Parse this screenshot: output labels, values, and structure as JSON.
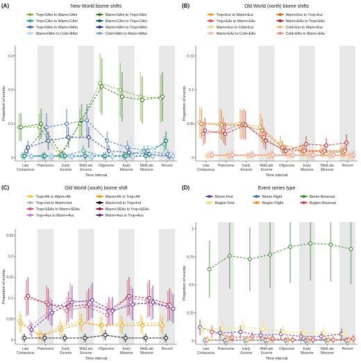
{
  "figure": {
    "background": "#ffffff",
    "shade_color": "#e8e8e8"
  },
  "chart_data": [
    {
      "type": "line",
      "letter": "(A)",
      "title": "New World biome shifts",
      "xlabel": "Time interval",
      "ylabel": "Proportion of events",
      "categories": [
        "Late Cretaceous",
        "Paleocene",
        "Early Eocene",
        "Mid/Late Eocene",
        "Oligocene",
        "Early Miocene",
        "Mid/Late Miocene",
        "Recent"
      ],
      "yticks": [
        0,
        0.1,
        0.2,
        0.3
      ],
      "ylim": [
        -0.01,
        0.33
      ],
      "legend_position": "top",
      "series": [
        {
          "name": "Trop+SAm to Warm+SAm",
          "color": "#7cb342",
          "values": [
            0.09,
            0.09,
            0.005,
            0.1,
            0.22,
            0.2,
            0.18,
            0.175
          ]
        },
        {
          "name": "Warm+SAm to Trop+SAm",
          "color": "#3a7d22",
          "values": [
            0.09,
            0.1,
            0.01,
            0.11,
            0.21,
            0.18,
            0.17,
            0.18
          ]
        },
        {
          "name": "Trop+CAm to Warm+CAm",
          "color": "#26a69a",
          "values": [
            0.005,
            0.005,
            0.005,
            0.02,
            0.005,
            0.005,
            0.02,
            0.04
          ]
        },
        {
          "name": "Warm+CAm to Trop+CAm",
          "color": "#00695c",
          "values": [
            0.005,
            0.005,
            0.005,
            0.005,
            0.005,
            0.005,
            0.005,
            0.05
          ]
        },
        {
          "name": "Trop+NAm to Warm+NAm",
          "color": "#3f6fb5",
          "values": [
            0.02,
            0.09,
            0.1,
            0.11,
            0.05,
            0.03,
            0.02,
            0.01
          ]
        },
        {
          "name": "Warm+NAm to Trop+NAm",
          "color": "#1f3f8a",
          "values": [
            0.03,
            0.05,
            0.06,
            0.06,
            0.02,
            0.015,
            0.01,
            0.005
          ]
        },
        {
          "name": "Warm+NAm to Cold+NAm",
          "color": "#b5d3ef",
          "values": [
            0.003,
            0.003,
            0.003,
            0.003,
            0.01,
            0.04,
            0.02,
            0.01
          ]
        },
        {
          "name": "Cold+NAm to Warm+NAm",
          "color": "#7aa7d6",
          "values": [
            0.003,
            0.003,
            0.003,
            0.003,
            0.003,
            0.003,
            0.004,
            0.005
          ]
        }
      ]
    },
    {
      "type": "line",
      "letter": "(B)",
      "title": "Old World (north) biome shifts",
      "xlabel": "Time interval",
      "ylabel": "Proportion of events",
      "categories": [
        "Late Cretaceous",
        "Paleocene",
        "Early Eocene",
        "Mid/Late Eocene",
        "Oligocene",
        "Early Miocene",
        "Mid/Late Miocene",
        "Recent"
      ],
      "yticks": [
        0,
        0.05,
        0.1,
        0.15
      ],
      "ylim": [
        -0.005,
        0.165
      ],
      "legend_position": "top",
      "series": [
        {
          "name": "Trop+Eur to Warm+Eur",
          "color": "#f0a030",
          "values": [
            0.052,
            0.05,
            0.05,
            0.045,
            0.02,
            0.012,
            0.01,
            0.01
          ]
        },
        {
          "name": "Warm+Eur to Trop+Eur",
          "color": "#d46a1a",
          "values": [
            0.05,
            0.048,
            0.048,
            0.04,
            0.015,
            0.01,
            0.008,
            0.008
          ]
        },
        {
          "name": "Trop+EAs to Warm+EAs",
          "color": "#e05a4f",
          "values": [
            0.035,
            0.04,
            0.05,
            0.03,
            0.01,
            0.01,
            0.01,
            0.01
          ]
        },
        {
          "name": "Warm+EAs to Trop+EAs",
          "color": "#b02a2a",
          "values": [
            0.04,
            0.035,
            0.048,
            0.025,
            0.01,
            0.02,
            0.018,
            0.022
          ]
        },
        {
          "name": "Warm+Eur to Cold+Eur",
          "color": "#f7cf8e",
          "values": [
            0.003,
            0.003,
            0.003,
            0.003,
            0.003,
            0.003,
            0.003,
            0.003
          ]
        },
        {
          "name": "Cold+Eur to Warm+Eur",
          "color": "#f2b66b",
          "values": [
            0.003,
            0.003,
            0.003,
            0.003,
            0.003,
            0.003,
            0.003,
            0.003
          ]
        },
        {
          "name": "Warm+EAs to Cold+EAs",
          "color": "#f4b8b0",
          "values": [
            0.004,
            0.004,
            0.004,
            0.004,
            0.004,
            0.004,
            0.004,
            0.004
          ]
        },
        {
          "name": "Cold+EAs to Warm+EAs",
          "color": "#e98a80",
          "values": [
            0.004,
            0.004,
            0.004,
            0.004,
            0.004,
            0.004,
            0.004,
            0.004
          ]
        }
      ]
    },
    {
      "type": "line",
      "letter": "(C)",
      "title": "Old World (south) biome shift",
      "xlabel": "Time interval",
      "ylabel": "Proportion of events",
      "categories": [
        "Late Cretaceous",
        "Paleocene",
        "Early Eocene",
        "Mid/Late Eocene",
        "Oligocene",
        "Early Miocene",
        "Mid/Late Miocene",
        "Recent"
      ],
      "yticks": [
        0,
        0.05,
        0.1,
        0.15,
        0.2,
        0.25
      ],
      "ylim": [
        -0.01,
        0.265
      ],
      "legend_position": "top",
      "series": [
        {
          "name": "Trop+Afr to Warm+Afr",
          "color": "#f2c53d",
          "values": [
            0.045,
            0.01,
            0.03,
            0.045,
            0.035,
            0.04,
            0.04,
            0.04
          ]
        },
        {
          "name": "Warm+Afr to Trop+Afr",
          "color": "#f39c12",
          "values": [
            0.04,
            0.01,
            0.025,
            0.04,
            0.035,
            0.035,
            0.035,
            0.035
          ]
        },
        {
          "name": "Trop+Ind to Warm+Ind",
          "color": "#b0b0b0",
          "values": [
            0.005,
            0.005,
            0.005,
            0.005,
            0.01,
            0.005,
            0.005,
            0.005
          ]
        },
        {
          "name": "Warm+Ind to Trop+Ind",
          "color": "#111111",
          "values": [
            0.005,
            0.005,
            0.005,
            0.005,
            0.012,
            0.005,
            0.005,
            0.005
          ]
        },
        {
          "name": "Trop+SEAs to Warm+SEAs",
          "color": "#d9557a",
          "values": [
            0.1,
            0.09,
            0.07,
            0.08,
            0.06,
            0.1,
            0.095,
            0.08
          ]
        },
        {
          "name": "Warm+SEAs to Trop+SEAs",
          "color": "#a2173c",
          "values": [
            0.105,
            0.085,
            0.08,
            0.085,
            0.07,
            0.105,
            0.1,
            0.085
          ]
        },
        {
          "name": "Trop+Aus to Warm+Aus",
          "color": "#c27bd1",
          "values": [
            0.03,
            0.07,
            0.095,
            0.09,
            0.065,
            0.09,
            0.085,
            0.08
          ]
        },
        {
          "name": "Warm+Aus to Trop+Aus",
          "color": "#5e2a8c",
          "values": [
            0.025,
            0.065,
            0.09,
            0.095,
            0.07,
            0.085,
            0.09,
            0.075
          ]
        }
      ]
    },
    {
      "type": "line",
      "letter": "(D)",
      "title": "Event series type",
      "xlabel": "Time interval",
      "ylabel": "Proportion of events",
      "categories": [
        "Late Cretaceous",
        "Paleocene",
        "Early Eocene",
        "Mid/Late Eocene",
        "Oligocene",
        "Early Miocene",
        "Mid/Late Miocene",
        "Recent"
      ],
      "yticks": [
        0,
        0.25,
        0.5,
        0.75,
        1.0
      ],
      "ylim": [
        -0.03,
        1.06
      ],
      "legend_position": "top",
      "series": [
        {
          "name": "Biome First",
          "color": "#6a3d9a",
          "values": [
            0.12,
            0.07,
            0.08,
            0.05,
            0.06,
            0.04,
            0.04,
            0.06
          ]
        },
        {
          "name": "Region First",
          "color": "#f7dc5a",
          "values": [
            0.1,
            0.11,
            0.12,
            0.11,
            0.08,
            0.07,
            0.07,
            0.06
          ]
        },
        {
          "name": "Biome Flight",
          "color": "#3f73b5",
          "values": [
            0.005,
            0.005,
            0.005,
            0.005,
            0.005,
            0.005,
            0.005,
            0.005
          ]
        },
        {
          "name": "Region Flight",
          "color": "#f08c2a",
          "values": [
            0.01,
            0.01,
            0.01,
            0.01,
            0.01,
            0.01,
            0.01,
            0.01
          ]
        },
        {
          "name": "Biome Reversal",
          "color": "#3a8d32",
          "values": [
            0.64,
            0.76,
            0.73,
            0.77,
            0.84,
            0.87,
            0.86,
            0.82
          ]
        },
        {
          "name": "Region Reversal",
          "color": "#d94545",
          "values": [
            0.08,
            0.03,
            0.04,
            0.02,
            0.01,
            0.01,
            0.01,
            0.02
          ]
        }
      ]
    }
  ]
}
